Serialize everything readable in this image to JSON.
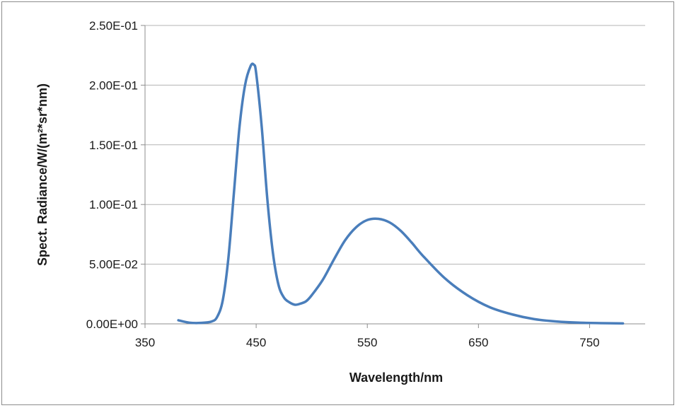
{
  "chart_data": {
    "type": "line",
    "title": "",
    "xlabel": "Wavelength/nm",
    "ylabel": "Spect. Radiance/W/(m²*sr*nm)",
    "xlim": [
      350,
      800
    ],
    "ylim": [
      0,
      0.25
    ],
    "x_ticks": [
      350,
      450,
      550,
      650,
      750
    ],
    "x_tick_labels": [
      "350",
      "450",
      "550",
      "650",
      "750"
    ],
    "y_ticks": [
      0,
      0.05,
      0.1,
      0.15,
      0.2,
      0.25
    ],
    "y_tick_labels": [
      "0.00E+00",
      "5.00E-02",
      "1.00E-01",
      "1.50E-01",
      "2.00E-01",
      "2.50E-01"
    ],
    "grid": "horizontal",
    "legend": "none",
    "color": "#4a7ebb",
    "series": [
      {
        "x": [
          380,
          390,
          400,
          410,
          415,
          420,
          425,
          430,
          435,
          440,
          445,
          448,
          450,
          455,
          460,
          465,
          470,
          475,
          480,
          485,
          490,
          495,
          500,
          510,
          520,
          530,
          540,
          550,
          560,
          570,
          580,
          590,
          600,
          620,
          640,
          660,
          680,
          700,
          720,
          740,
          760,
          780
        ],
        "y": [
          0.003,
          0.001,
          0.0008,
          0.002,
          0.006,
          0.02,
          0.055,
          0.11,
          0.165,
          0.2,
          0.216,
          0.217,
          0.21,
          0.165,
          0.105,
          0.06,
          0.033,
          0.022,
          0.018,
          0.016,
          0.017,
          0.019,
          0.024,
          0.037,
          0.054,
          0.07,
          0.081,
          0.087,
          0.088,
          0.085,
          0.078,
          0.068,
          0.057,
          0.038,
          0.024,
          0.014,
          0.008,
          0.004,
          0.002,
          0.001,
          0.0006,
          0.0004
        ]
      }
    ]
  }
}
